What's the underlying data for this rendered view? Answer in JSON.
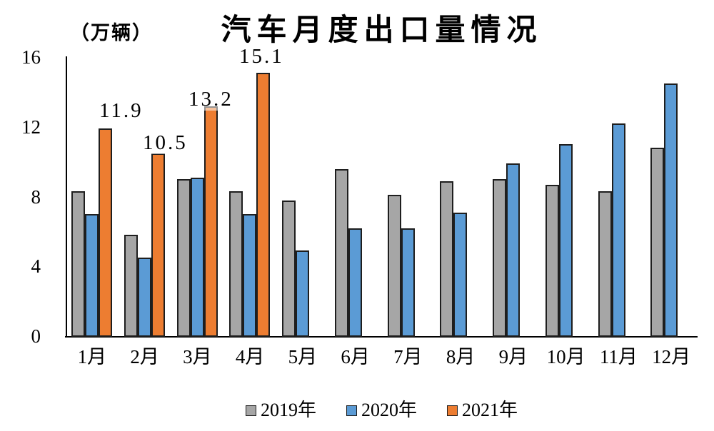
{
  "title": "汽车月度出口量情况",
  "y_axis_unit": "（万辆）",
  "colors": {
    "series_2019": "#A6A6A6",
    "series_2020": "#5B9BD5",
    "series_2021": "#ED7D31",
    "bar_outline": "#1E1E1E",
    "axis": "#000000",
    "background": "#FFFFFF"
  },
  "chart_data": {
    "type": "bar",
    "title": "汽车月度出口量情况",
    "unit_label": "（万辆）",
    "xlabel": "",
    "ylabel": "万辆",
    "categories": [
      "1月",
      "2月",
      "3月",
      "4月",
      "5月",
      "6月",
      "7月",
      "8月",
      "9月",
      "10月",
      "11月",
      "12月"
    ],
    "series": [
      {
        "name": "2019年",
        "color": "#A6A6A6",
        "values": [
          8.3,
          5.8,
          9.0,
          8.3,
          7.8,
          9.6,
          8.1,
          8.9,
          9.0,
          8.7,
          8.3,
          10.8
        ]
      },
      {
        "name": "2020年",
        "color": "#5B9BD5",
        "values": [
          7.0,
          4.5,
          9.1,
          7.0,
          4.9,
          6.2,
          6.2,
          7.1,
          9.9,
          11.0,
          12.2,
          14.5
        ]
      },
      {
        "name": "2021年",
        "color": "#ED7D31",
        "values": [
          11.9,
          10.5,
          13.2,
          15.1,
          null,
          null,
          null,
          null,
          null,
          null,
          null,
          null
        ],
        "data_labels": [
          "11.9",
          "10.5",
          "13.2",
          "15.1"
        ]
      }
    ],
    "ylim": [
      0,
      16
    ],
    "yticks": [
      0,
      4,
      8,
      12,
      16
    ],
    "grid": false,
    "legend_position": "bottom"
  }
}
